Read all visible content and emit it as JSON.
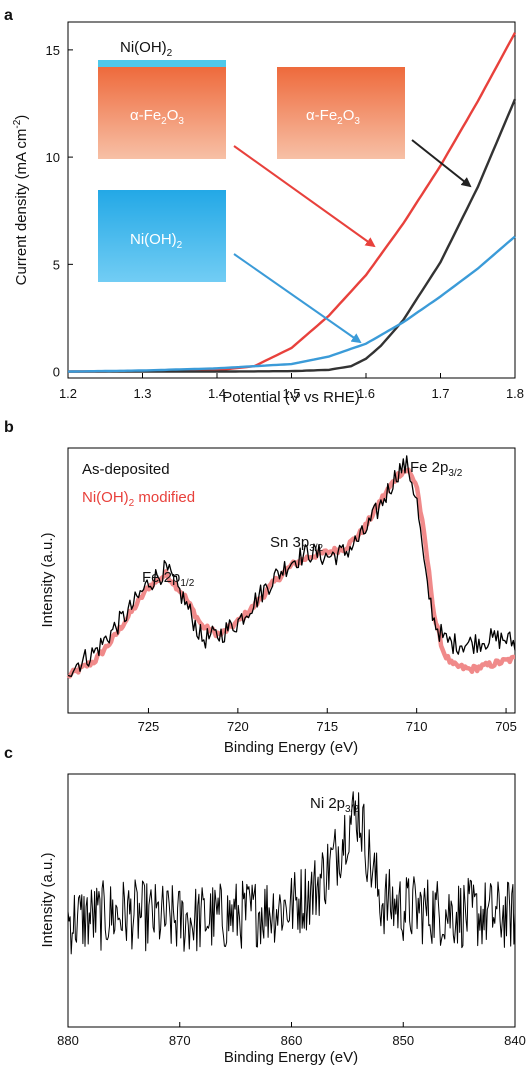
{
  "chart_data": [
    {
      "panel": "a",
      "type": "line",
      "xlabel": "Potential (V vs RHE)",
      "ylabel": "Current density (mA cm",
      "ylabel_sup": "-2",
      "ylabel_close": ")",
      "xlim": [
        1.2,
        1.8
      ],
      "ylim": [
        -0.3,
        16.3
      ],
      "xticks": [
        "1.2",
        "1.3",
        "1.4",
        "1.5",
        "1.6",
        "1.7",
        "1.8"
      ],
      "yticks": [
        "0",
        "5",
        "10",
        "15"
      ],
      "colors": {
        "red": "#e8413c",
        "black": "#333333",
        "blue": "#3b9bd8"
      },
      "series": [
        {
          "color": "#e8413c",
          "x": [
            1.2,
            1.3,
            1.4,
            1.45,
            1.5,
            1.55,
            1.6,
            1.65,
            1.7,
            1.75,
            1.8
          ],
          "y": [
            0,
            0.02,
            0.06,
            0.25,
            1.1,
            2.6,
            4.5,
            6.9,
            9.6,
            12.6,
            15.8
          ]
        },
        {
          "color": "#333333",
          "x": [
            1.2,
            1.4,
            1.5,
            1.55,
            1.58,
            1.6,
            1.62,
            1.65,
            1.7,
            1.75,
            1.8
          ],
          "y": [
            0,
            0.0,
            0.02,
            0.08,
            0.25,
            0.6,
            1.2,
            2.4,
            5.1,
            8.6,
            12.7
          ]
        },
        {
          "color": "#3b9bd8",
          "x": [
            1.2,
            1.3,
            1.4,
            1.5,
            1.55,
            1.6,
            1.65,
            1.7,
            1.75,
            1.8
          ],
          "y": [
            0,
            0.05,
            0.15,
            0.35,
            0.7,
            1.3,
            2.3,
            3.5,
            4.8,
            6.3
          ]
        }
      ],
      "insets": {
        "ni_top_label": "Ni(OH)",
        "ni_top_sub": "2",
        "fe_label_1": "α-Fe",
        "fe_sub_1": "2",
        "fe_mid_1": "O",
        "fe_sub_2": "3",
        "ni_blue_label": "Ni(OH)",
        "ni_blue_sub": "2"
      }
    },
    {
      "panel": "b",
      "type": "line",
      "xlabel": "Binding Energy (eV)",
      "ylabel": "Intensity (a.u.)",
      "xlim": [
        729.5,
        704.5
      ],
      "xticks": [
        "725",
        "720",
        "715",
        "710",
        "705"
      ],
      "legend": [
        {
          "name": "As-deposited",
          "color": "#000000"
        },
        {
          "name": "Ni(OH)",
          "sub": "2",
          "tail": " modified",
          "color": "#f08a8a"
        }
      ],
      "annotations": [
        {
          "text": "Fe 2p",
          "sub": "1/2",
          "x": 724
        },
        {
          "text": "Sn 3p",
          "sub": "3/2",
          "x": 716
        },
        {
          "text": "Fe 2p",
          "sub": "3/2",
          "x": 710
        }
      ],
      "series": [
        {
          "name": "Ni(OH)2 modified",
          "color": "#f08a8a",
          "x": [
            729.5,
            728,
            727,
            726,
            725,
            724,
            723,
            722,
            721,
            720,
            719,
            718,
            717,
            716,
            715,
            714,
            713,
            712,
            711,
            710.5,
            710,
            709.5,
            709,
            708.5,
            708,
            707,
            706,
            705,
            704.5
          ],
          "y": [
            0.05,
            0.12,
            0.22,
            0.34,
            0.46,
            0.52,
            0.42,
            0.28,
            0.24,
            0.3,
            0.38,
            0.48,
            0.56,
            0.6,
            0.62,
            0.64,
            0.72,
            0.86,
            0.98,
            1.0,
            0.93,
            0.65,
            0.32,
            0.16,
            0.1,
            0.08,
            0.1,
            0.12,
            0.13
          ],
          "noise": 0.015
        },
        {
          "name": "As-deposited",
          "color": "#000000",
          "x": [
            729.5,
            728,
            727,
            726,
            725,
            724,
            723,
            722,
            721,
            720,
            719,
            718,
            717,
            716,
            715,
            714,
            713,
            712,
            711,
            710.5,
            710,
            709.5,
            709,
            708.5,
            708,
            707,
            706,
            705,
            704.5
          ],
          "y": [
            0.08,
            0.16,
            0.26,
            0.36,
            0.48,
            0.54,
            0.4,
            0.22,
            0.24,
            0.3,
            0.4,
            0.5,
            0.58,
            0.62,
            0.6,
            0.62,
            0.7,
            0.84,
            1.0,
            1.02,
            0.86,
            0.5,
            0.3,
            0.22,
            0.2,
            0.2,
            0.22,
            0.22,
            0.2
          ],
          "noise": 0.05
        }
      ]
    },
    {
      "panel": "c",
      "type": "line",
      "xlabel": "Binding Energy (eV)",
      "ylabel": "Intensity (a.u.)",
      "xlim": [
        880,
        840
      ],
      "xticks": [
        "880",
        "870",
        "860",
        "850",
        "840"
      ],
      "annotations": [
        {
          "text": "Ni 2p",
          "sub": "3/2",
          "x": 854
        }
      ],
      "series": [
        {
          "name": "Ni 2p",
          "color": "#000000",
          "x": [
            880,
            875,
            870,
            865,
            860,
            858,
            856,
            855,
            854,
            853,
            852,
            850,
            845,
            840
          ],
          "y": [
            0.42,
            0.45,
            0.42,
            0.44,
            0.48,
            0.54,
            0.68,
            0.8,
            0.86,
            0.66,
            0.5,
            0.47,
            0.45,
            0.44
          ],
          "noise": 0.14
        }
      ]
    }
  ],
  "panel_labels": [
    "a",
    "b",
    "c"
  ]
}
